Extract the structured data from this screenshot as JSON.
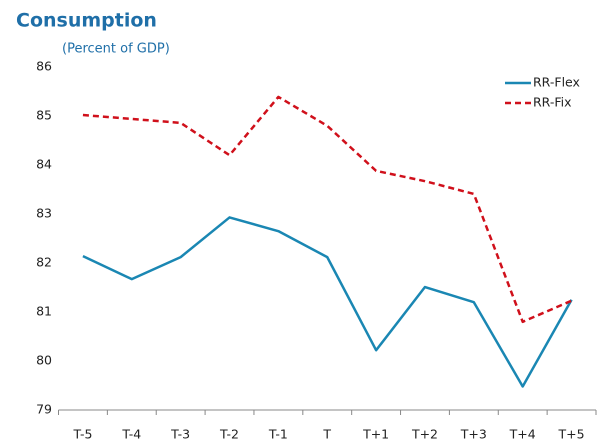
{
  "chart_data": {
    "type": "line",
    "title": "Consumption",
    "subtitle": "(Percent of GDP)",
    "categories": [
      "T-5",
      "T-4",
      "T-3",
      "T-2",
      "T-1",
      "T",
      "T+1",
      "T+2",
      "T+3",
      "T+4",
      "T+5"
    ],
    "series": [
      {
        "name": "RR-Flex",
        "color": "#1a87b3",
        "dash": false,
        "values": [
          82.14,
          81.67,
          82.12,
          82.93,
          82.65,
          82.12,
          80.22,
          81.51,
          81.2,
          79.48,
          81.25
        ]
      },
      {
        "name": "RR-Fix",
        "color": "#d0101b",
        "dash": true,
        "values": [
          85.02,
          84.94,
          84.86,
          84.2,
          85.39,
          84.8,
          83.88,
          83.67,
          83.41,
          80.8,
          81.23
        ]
      }
    ],
    "ylim": [
      79,
      86
    ],
    "yticks": [
      79,
      80,
      81,
      82,
      83,
      84,
      85,
      86
    ],
    "grid": false,
    "legend": "top-right"
  }
}
